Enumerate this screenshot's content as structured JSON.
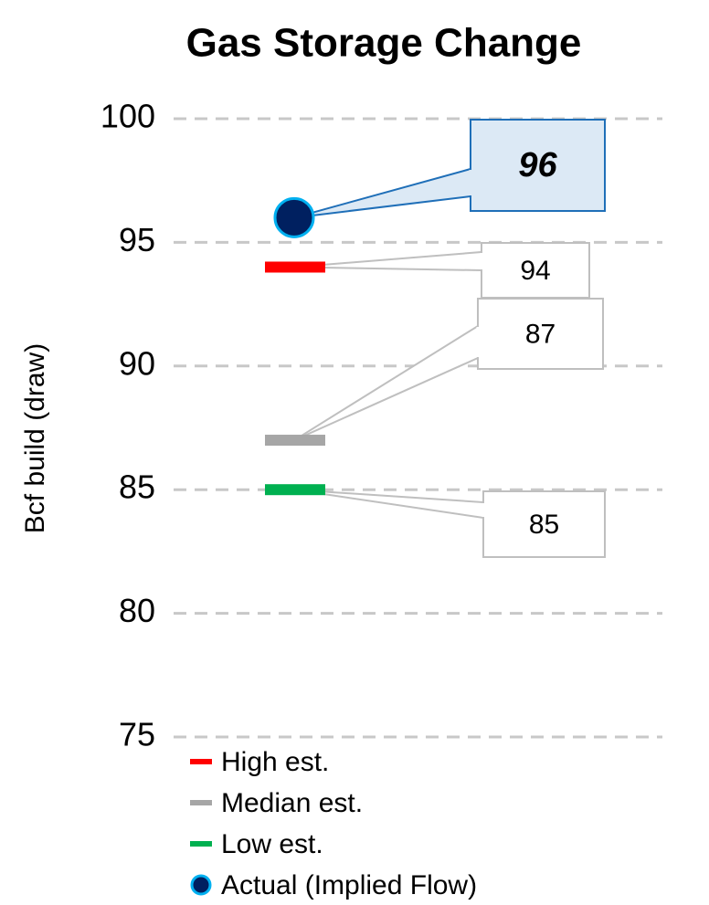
{
  "chart_data": {
    "type": "marker",
    "title": "Gas Storage Change",
    "y_label": "Bcf build (draw)",
    "ylim": [
      75,
      100
    ],
    "yticks": [
      75,
      80,
      85,
      90,
      95,
      100
    ],
    "grid": true,
    "series": [
      {
        "name": "High est.",
        "color": "#ff0000",
        "marker": "dash",
        "values": [
          94
        ]
      },
      {
        "name": "Median est.",
        "color": "#a6a6a6",
        "marker": "dash",
        "values": [
          87
        ]
      },
      {
        "name": "Low est.",
        "color": "#00b050",
        "marker": "dash",
        "values": [
          85
        ]
      },
      {
        "name": "Actual (Implied Flow)",
        "color": "#002060",
        "marker": "circle",
        "values": [
          96
        ]
      }
    ]
  }
}
